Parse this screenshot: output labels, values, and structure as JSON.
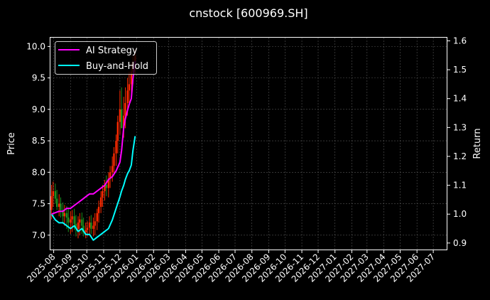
{
  "chart_data": {
    "type": "line",
    "title": "cnstock [600969.SH]",
    "ylabel_left": "Price",
    "ylabel_right": "Return",
    "y_left_range": [
      6.76,
      10.14
    ],
    "y_left_ticks": [
      "7.0",
      "7.5",
      "8.0",
      "8.5",
      "9.0",
      "9.5",
      "10.0"
    ],
    "y_right_range": [
      0.875,
      1.611
    ],
    "y_right_ticks": [
      "0.9",
      "1.0",
      "1.1",
      "1.2",
      "1.3",
      "1.4",
      "1.5",
      "1.6"
    ],
    "x_tick_labels": [
      "2025-08",
      "2025-09",
      "2025-10",
      "2025-11",
      "2025-12",
      "2026-01",
      "2026-02",
      "2026-03",
      "2026-04",
      "2026-05",
      "2026-06",
      "2026-07",
      "2026-08",
      "2026-09",
      "2026-10",
      "2026-11",
      "2026-12",
      "2027-01",
      "2027-02",
      "2027-03",
      "2027-04",
      "2027-05",
      "2027-06",
      "2027-07"
    ],
    "x_range": [
      "2025-07-26",
      "2027-07-27"
    ],
    "grid": true,
    "legend_placement": "upper-left",
    "colors": {
      "background": "#000000",
      "ai_strategy": "#ff00ff",
      "buy_and_hold": "#00ffff",
      "candle_up": "#ff2a00",
      "candle_down": "#1f8f1f",
      "grid": "#555555"
    },
    "series": [
      {
        "name": "AI Strategy",
        "axis": "right",
        "dates": [
          "2025-07-28",
          "2025-08-04",
          "2025-08-11",
          "2025-08-18",
          "2025-08-25",
          "2025-09-01",
          "2025-09-08",
          "2025-09-15",
          "2025-09-22",
          "2025-09-29",
          "2025-10-06",
          "2025-10-13",
          "2025-10-20",
          "2025-10-27",
          "2025-11-03",
          "2025-11-10",
          "2025-11-17",
          "2025-11-24",
          "2025-12-01",
          "2025-12-04",
          "2025-12-08",
          "2025-12-11",
          "2025-12-15",
          "2025-12-18",
          "2025-12-22",
          "2025-12-25",
          "2025-12-29"
        ],
        "values": [
          1.0,
          1.005,
          1.01,
          1.01,
          1.02,
          1.02,
          1.03,
          1.04,
          1.05,
          1.06,
          1.07,
          1.07,
          1.08,
          1.09,
          1.1,
          1.12,
          1.13,
          1.15,
          1.18,
          1.22,
          1.3,
          1.33,
          1.36,
          1.38,
          1.4,
          1.47,
          1.53
        ]
      },
      {
        "name": "Buy-and-Hold",
        "axis": "right",
        "dates": [
          "2025-07-28",
          "2025-08-04",
          "2025-08-11",
          "2025-08-18",
          "2025-08-25",
          "2025-09-01",
          "2025-09-08",
          "2025-09-15",
          "2025-09-22",
          "2025-09-29",
          "2025-10-06",
          "2025-10-13",
          "2025-10-20",
          "2025-10-27",
          "2025-11-03",
          "2025-11-10",
          "2025-11-17",
          "2025-11-24",
          "2025-12-01",
          "2025-12-04",
          "2025-12-08",
          "2025-12-11",
          "2025-12-15",
          "2025-12-18",
          "2025-12-22",
          "2025-12-25",
          "2025-12-29"
        ],
        "values": [
          1.0,
          0.98,
          0.97,
          0.97,
          0.96,
          0.95,
          0.96,
          0.94,
          0.95,
          0.93,
          0.93,
          0.91,
          0.92,
          0.93,
          0.94,
          0.95,
          0.98,
          1.02,
          1.06,
          1.08,
          1.1,
          1.12,
          1.14,
          1.15,
          1.17,
          1.22,
          1.27
        ]
      }
    ],
    "ohlc": {
      "axis": "left",
      "dates": [
        "2025-07-28",
        "2025-07-31",
        "2025-08-04",
        "2025-08-07",
        "2025-08-11",
        "2025-08-14",
        "2025-08-18",
        "2025-08-21",
        "2025-08-25",
        "2025-08-28",
        "2025-09-01",
        "2025-09-04",
        "2025-09-08",
        "2025-09-11",
        "2025-09-15",
        "2025-09-18",
        "2025-09-22",
        "2025-09-25",
        "2025-09-29",
        "2025-10-02",
        "2025-10-06",
        "2025-10-09",
        "2025-10-13",
        "2025-10-16",
        "2025-10-20",
        "2025-10-23",
        "2025-10-27",
        "2025-10-30",
        "2025-11-03",
        "2025-11-06",
        "2025-11-10",
        "2025-11-13",
        "2025-11-17",
        "2025-11-20",
        "2025-11-24",
        "2025-11-27",
        "2025-12-01",
        "2025-12-04",
        "2025-12-08",
        "2025-12-11",
        "2025-12-15",
        "2025-12-18",
        "2025-12-22",
        "2025-12-25",
        "2025-12-29"
      ],
      "open": [
        7.4,
        7.62,
        7.7,
        7.58,
        7.45,
        7.5,
        7.4,
        7.3,
        7.35,
        7.28,
        7.2,
        7.25,
        7.3,
        7.18,
        7.1,
        7.2,
        7.25,
        7.15,
        7.05,
        7.08,
        7.12,
        7.2,
        7.1,
        7.15,
        7.22,
        7.35,
        7.45,
        7.6,
        7.7,
        7.8,
        7.75,
        7.9,
        8.0,
        8.1,
        8.3,
        8.5,
        8.8,
        9.0,
        8.7,
        8.9,
        9.1,
        9.3,
        9.4,
        9.6,
        9.75
      ],
      "high": [
        7.8,
        7.85,
        7.82,
        7.72,
        7.65,
        7.6,
        7.52,
        7.48,
        7.46,
        7.42,
        7.38,
        7.4,
        7.42,
        7.32,
        7.3,
        7.35,
        7.36,
        7.28,
        7.2,
        7.22,
        7.3,
        7.32,
        7.28,
        7.35,
        7.42,
        7.55,
        7.7,
        7.8,
        7.88,
        7.95,
        8.0,
        8.1,
        8.25,
        8.4,
        8.6,
        8.9,
        9.3,
        9.35,
        9.2,
        9.35,
        9.5,
        9.6,
        9.75,
        9.85,
        9.95
      ],
      "low": [
        7.25,
        7.45,
        7.5,
        7.4,
        7.3,
        7.28,
        7.2,
        7.15,
        7.1,
        7.05,
        7.02,
        7.05,
        7.08,
        6.98,
        6.95,
        7.0,
        7.02,
        6.98,
        6.95,
        6.98,
        7.0,
        7.02,
        6.98,
        7.0,
        7.08,
        7.2,
        7.35,
        7.45,
        7.55,
        7.62,
        7.6,
        7.75,
        7.85,
        7.95,
        8.1,
        8.3,
        8.6,
        8.75,
        8.55,
        8.7,
        8.9,
        9.1,
        9.25,
        9.4,
        9.55
      ],
      "close": [
        7.62,
        7.7,
        7.58,
        7.45,
        7.5,
        7.4,
        7.3,
        7.35,
        7.28,
        7.2,
        7.25,
        7.3,
        7.18,
        7.1,
        7.2,
        7.25,
        7.15,
        7.05,
        7.08,
        7.12,
        7.2,
        7.1,
        7.15,
        7.22,
        7.35,
        7.45,
        7.6,
        7.7,
        7.8,
        7.75,
        7.9,
        8.0,
        8.1,
        8.3,
        8.5,
        8.8,
        9.0,
        8.7,
        8.9,
        9.1,
        9.3,
        9.4,
        9.6,
        9.75,
        9.85
      ]
    }
  }
}
